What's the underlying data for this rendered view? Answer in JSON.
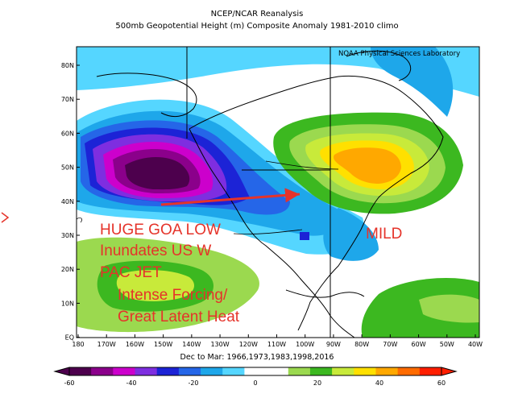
{
  "header": {
    "title": "NCEP/NCAR Reanalysis",
    "subtitle": "500mb Geopotential Height (m) Composite Anomaly 1981-2010 climo",
    "credit": "NOAA Physical Sciences Laboratory"
  },
  "map": {
    "lat_labels": [
      "80N",
      "70N",
      "60N",
      "50N",
      "40N",
      "30N",
      "20N",
      "10N",
      "EQ"
    ],
    "lon_labels": [
      "180",
      "170W",
      "160W",
      "150W",
      "140W",
      "130W",
      "120W",
      "110W",
      "100W",
      "90W",
      "80W",
      "70W",
      "60W",
      "50W",
      "40W"
    ],
    "footer": "Dec to Mar: 1966,1973,1983,1998,2016"
  },
  "colorbar": {
    "labels": [
      "-60",
      "-40",
      "-20",
      "0",
      "20",
      "40",
      "60"
    ],
    "colors": [
      "#4d004d",
      "#8b008b",
      "#cc00cc",
      "#7e2ee0",
      "#1c23d6",
      "#2566e8",
      "#1ea7ea",
      "#55d6ff",
      "#ffffff",
      "#ffffff",
      "#9bd94f",
      "#3cb820",
      "#c8ea3a",
      "#ffe000",
      "#ffa800",
      "#ff6b00",
      "#ff1e00"
    ]
  },
  "annotations": {
    "goa_low": "HUGE GOA LOW",
    "inundates": "Inundates US W",
    "pac_jet": "PAC JET",
    "forcing": "Intense Forcing/",
    "latent_heat": "Great Latent Heat",
    "mild": "MILD"
  }
}
